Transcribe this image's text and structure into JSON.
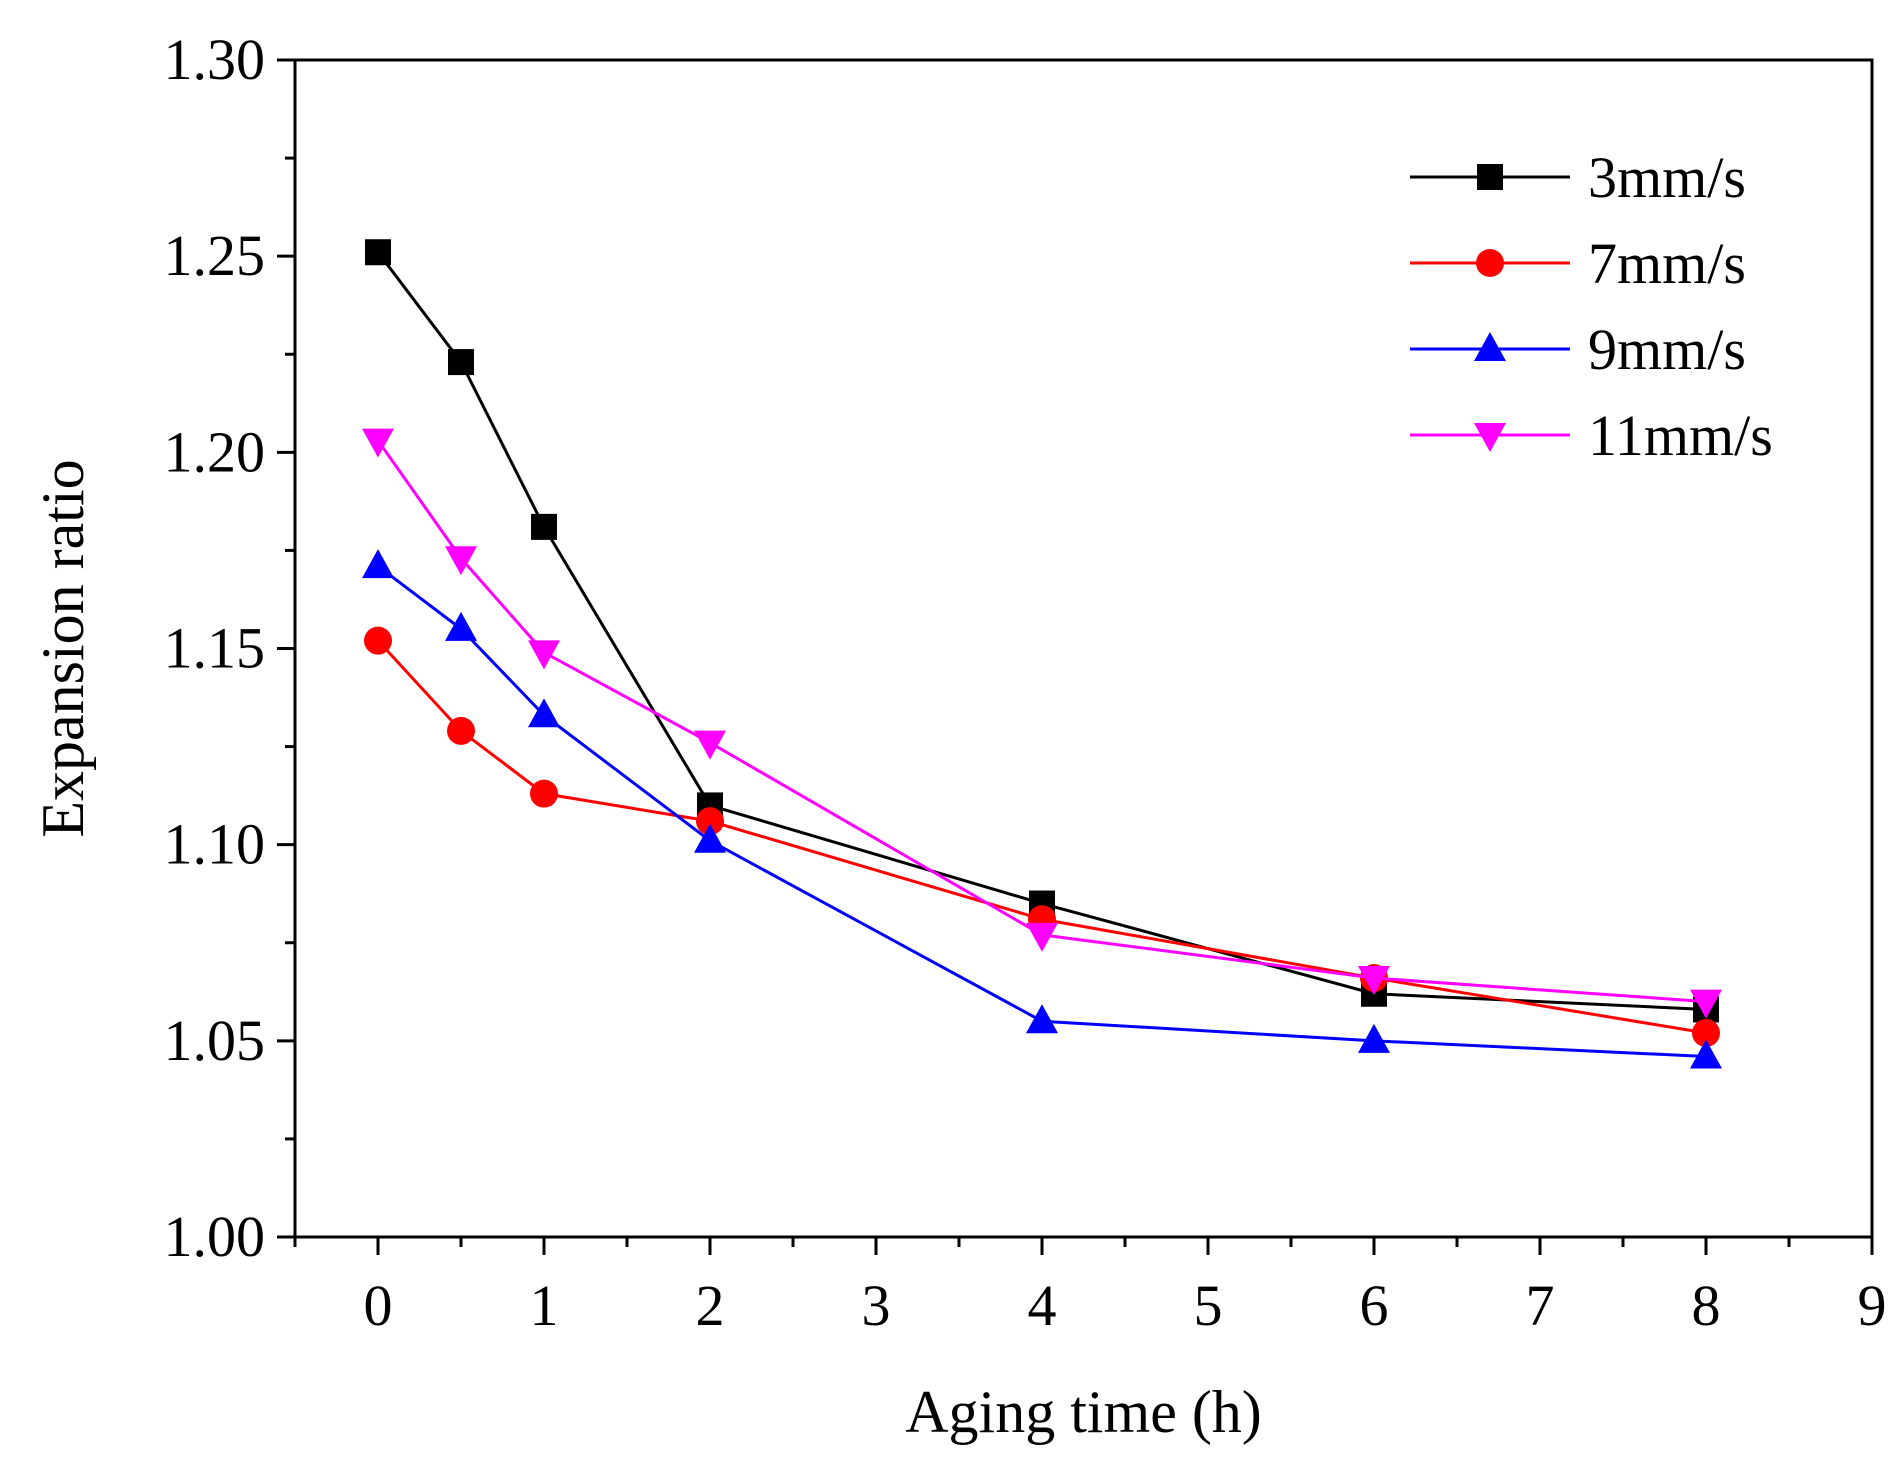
{
  "chart_data": {
    "type": "line",
    "title": "",
    "xlabel": "Aging time (h)",
    "ylabel": "Expansion ratio",
    "xlim": [
      -0.5,
      9
    ],
    "ylim": [
      1.0,
      1.3
    ],
    "x_ticks": [
      "0",
      "1",
      "2",
      "3",
      "4",
      "5",
      "6",
      "7",
      "8",
      "9"
    ],
    "y_ticks": [
      "1.00",
      "1.05",
      "1.10",
      "1.15",
      "1.20",
      "1.25",
      "1.30"
    ],
    "legend_position": "top-right",
    "x": [
      0,
      0.5,
      1,
      2,
      4,
      6,
      8
    ],
    "series": [
      {
        "name": "3mm/s",
        "color": "#000000",
        "marker": "square",
        "values": [
          1.251,
          1.223,
          1.181,
          1.11,
          1.085,
          1.062,
          1.058
        ]
      },
      {
        "name": "7mm/s",
        "color": "#ff0000",
        "marker": "circle",
        "values": [
          1.152,
          1.129,
          1.113,
          1.106,
          1.081,
          1.066,
          1.052
        ]
      },
      {
        "name": "9mm/s",
        "color": "#0000ff",
        "marker": "triangle-up",
        "values": [
          1.171,
          1.155,
          1.133,
          1.101,
          1.055,
          1.05,
          1.046
        ]
      },
      {
        "name": "11mm/s",
        "color": "#ff00ff",
        "marker": "triangle-down",
        "values": [
          1.203,
          1.173,
          1.149,
          1.126,
          1.077,
          1.066,
          1.06
        ]
      }
    ]
  }
}
